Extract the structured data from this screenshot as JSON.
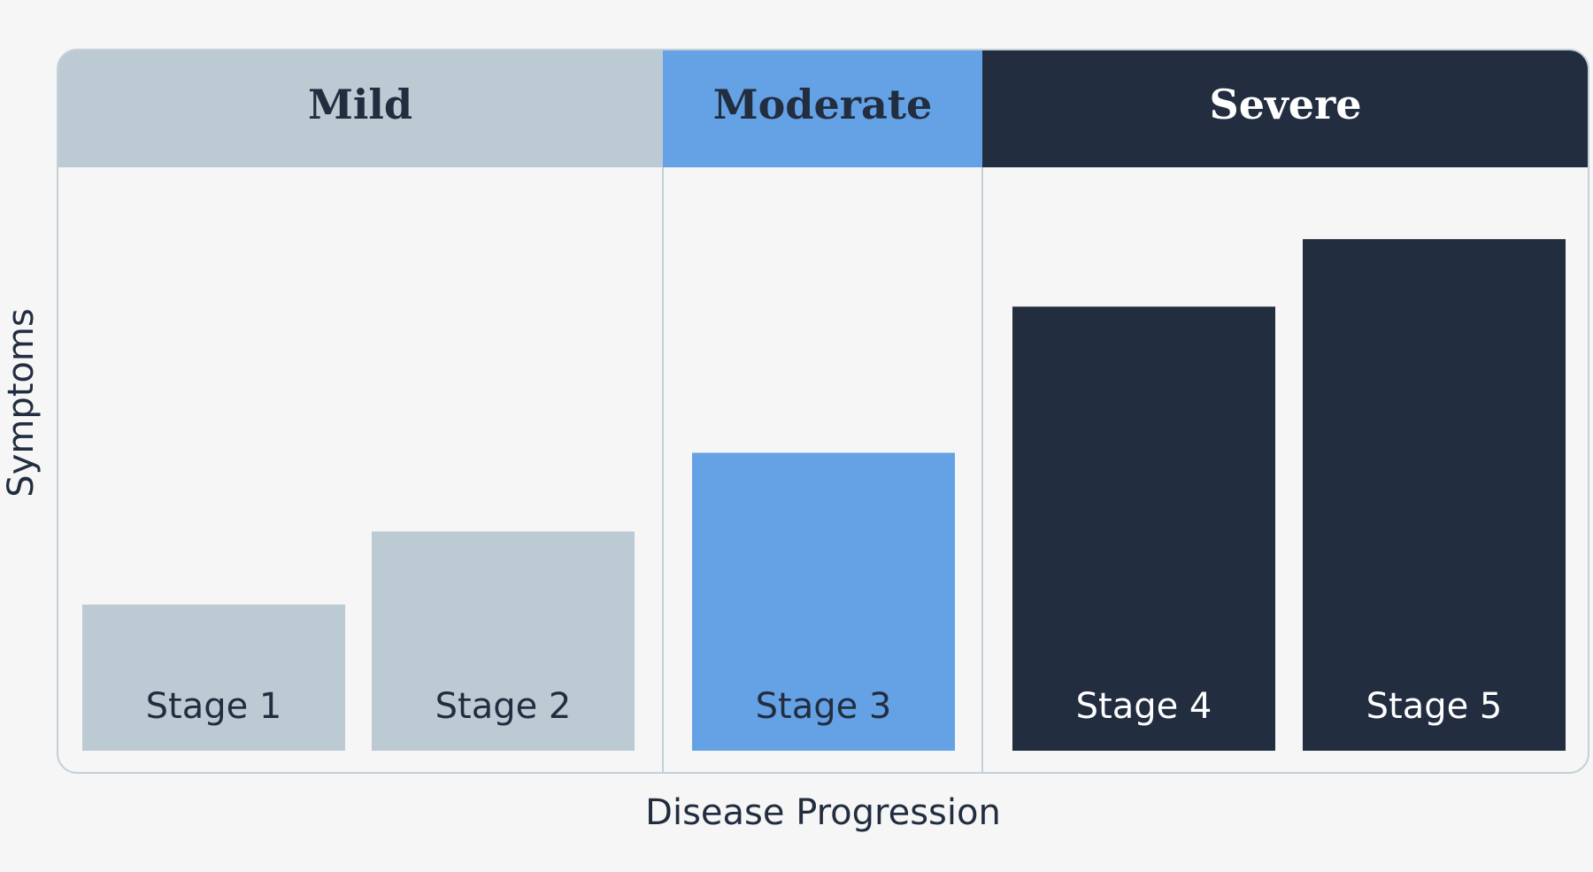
{
  "chart_data": {
    "type": "bar",
    "title": "",
    "xlabel": "Disease Progression",
    "ylabel": "Symptoms",
    "ylim": [
      0,
      100
    ],
    "grid": false,
    "groups": [
      {
        "name": "Mild",
        "color": "#bccad3",
        "text_color": "#222e40",
        "categories": [
          "Stage 1",
          "Stage 2"
        ]
      },
      {
        "name": "Moderate",
        "color": "#65a1e5",
        "text_color": "#222e40",
        "categories": [
          "Stage 3"
        ]
      },
      {
        "name": "Severe",
        "color": "#222d40",
        "text_color": "#ffffff",
        "categories": [
          "Stage 4",
          "Stage 5"
        ]
      }
    ],
    "categories": [
      "Stage 1",
      "Stage 2",
      "Stage 3",
      "Stage 4",
      "Stage 5"
    ],
    "values": [
      26,
      39,
      53,
      79,
      91
    ],
    "bar_colors": [
      "#bccad3",
      "#bccad3",
      "#65a1e5",
      "#222d40",
      "#222d40"
    ],
    "label_colors": [
      "#222e40",
      "#222e40",
      "#222e40",
      "#ffffff",
      "#ffffff"
    ]
  }
}
